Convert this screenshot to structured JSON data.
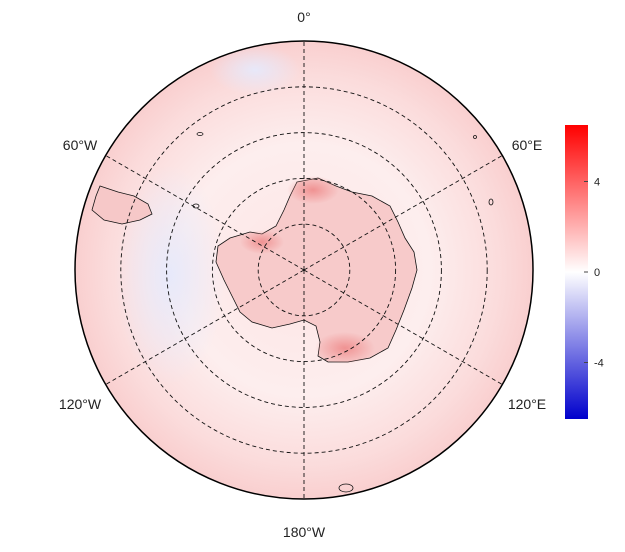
{
  "map": {
    "projection": "south-polar-stereographic",
    "longitude_labels": {
      "top": "0°",
      "upper_left": "60°W",
      "upper_right": "60°E",
      "lower_left": "120°W",
      "lower_right": "120°E",
      "bottom": "180°W"
    },
    "graticule": {
      "meridians_deg": [
        0,
        60,
        120,
        180,
        240,
        300
      ],
      "parallel_rings": 4,
      "style": "dashed"
    },
    "field_colors": {
      "ocean_base": "#fde8e8",
      "ocean_warm_rim": "#fad2d2",
      "cool_patch": "#e9ecfa",
      "continent": "#f6c6c6",
      "continent_hot": "#f09a9a"
    }
  },
  "colorbar": {
    "ticks": [
      "4",
      "0",
      "-4"
    ],
    "tick_values": [
      4,
      0,
      -4
    ],
    "range": [
      -6.5,
      6.5
    ],
    "colors": {
      "max": "#ff0000",
      "mid": "#ffffff",
      "min": "#0000cc"
    }
  }
}
